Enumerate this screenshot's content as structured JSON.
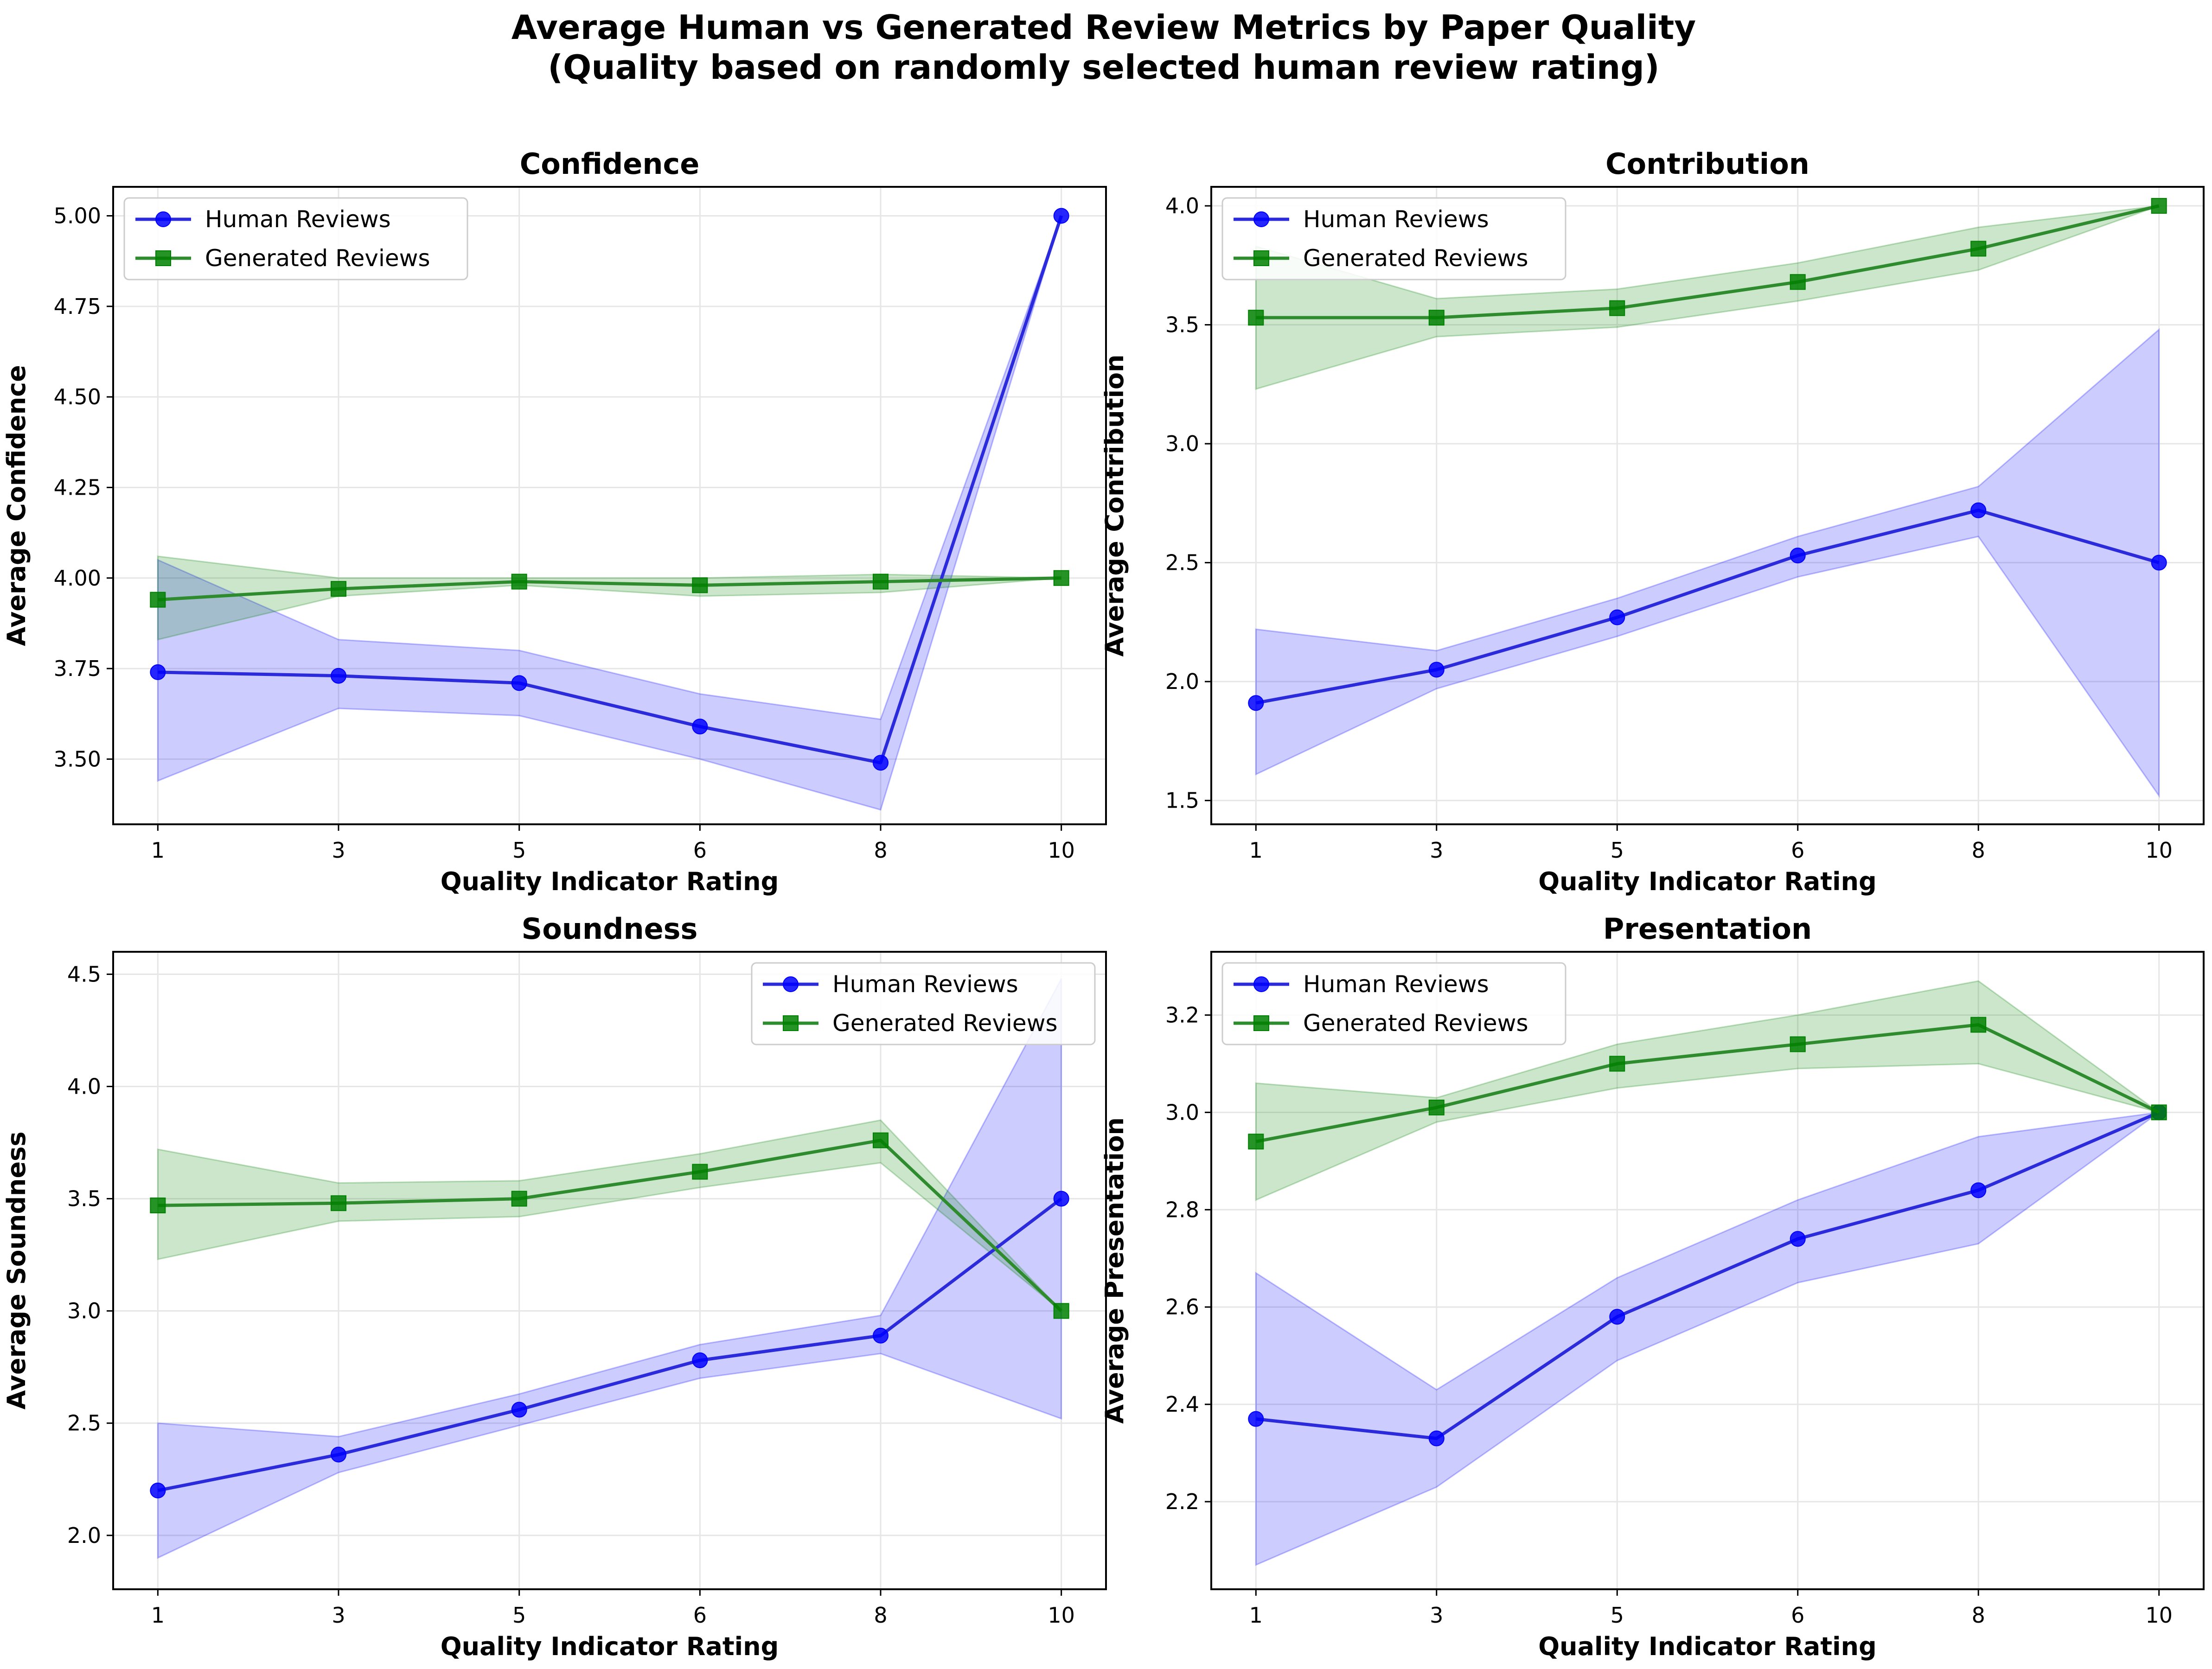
{
  "figure": {
    "title_line1": "Average Human vs Generated Review Metrics by Paper Quality",
    "title_line2": "(Quality based on randomly selected human review rating)"
  },
  "colors": {
    "human": "#0000ff",
    "generated": "#008000",
    "human_line": "#2b2bdc",
    "generated_line": "#2e8b2e",
    "grid": "#e6e6e6"
  },
  "legend": {
    "human": "Human Reviews",
    "generated": "Generated Reviews"
  },
  "chart_data": [
    {
      "type": "line",
      "title": "Confidence",
      "xlabel": "Quality Indicator Rating",
      "ylabel": "Average Confidence",
      "categories": [
        "1",
        "3",
        "5",
        "6",
        "8",
        "10"
      ],
      "ylim": [
        3.32,
        5.08
      ],
      "yticks": [
        3.5,
        3.75,
        4.0,
        4.25,
        4.5,
        4.75,
        5.0
      ],
      "ytick_labels": [
        "3.50",
        "3.75",
        "4.00",
        "4.25",
        "4.50",
        "4.75",
        "5.00"
      ],
      "legend_position": "upper-left",
      "series": [
        {
          "name": "Human Reviews",
          "values": [
            3.74,
            3.73,
            3.71,
            3.59,
            3.49,
            5.0
          ],
          "lower": [
            3.44,
            3.64,
            3.62,
            3.5,
            3.36,
            5.0
          ],
          "upper": [
            4.05,
            3.83,
            3.8,
            3.68,
            3.61,
            5.0
          ]
        },
        {
          "name": "Generated Reviews",
          "values": [
            3.94,
            3.97,
            3.99,
            3.98,
            3.99,
            4.0
          ],
          "lower": [
            3.83,
            3.95,
            3.98,
            3.95,
            3.96,
            4.0
          ],
          "upper": [
            4.06,
            4.0,
            4.0,
            4.0,
            4.01,
            4.0
          ]
        }
      ]
    },
    {
      "type": "line",
      "title": "Contribution",
      "xlabel": "Quality Indicator Rating",
      "ylabel": "Average Contribution",
      "categories": [
        "1",
        "3",
        "5",
        "6",
        "8",
        "10"
      ],
      "ylim": [
        1.4,
        4.08
      ],
      "yticks": [
        1.5,
        2.0,
        2.5,
        3.0,
        3.5,
        4.0
      ],
      "ytick_labels": [
        "1.5",
        "2.0",
        "2.5",
        "3.0",
        "3.5",
        "4.0"
      ],
      "legend_position": "upper-left",
      "series": [
        {
          "name": "Human Reviews",
          "values": [
            1.91,
            2.05,
            2.27,
            2.53,
            2.72,
            2.5
          ],
          "lower": [
            1.61,
            1.97,
            2.19,
            2.44,
            2.61,
            1.52
          ],
          "upper": [
            2.22,
            2.13,
            2.35,
            2.61,
            2.82,
            3.48
          ]
        },
        {
          "name": "Generated Reviews",
          "values": [
            3.53,
            3.53,
            3.57,
            3.68,
            3.82,
            4.0
          ],
          "lower": [
            3.23,
            3.45,
            3.49,
            3.6,
            3.73,
            4.0
          ],
          "upper": [
            3.83,
            3.61,
            3.65,
            3.76,
            3.91,
            4.0
          ]
        }
      ]
    },
    {
      "type": "line",
      "title": "Soundness",
      "xlabel": "Quality Indicator Rating",
      "ylabel": "Average Soundness",
      "categories": [
        "1",
        "3",
        "5",
        "6",
        "8",
        "10"
      ],
      "ylim": [
        1.76,
        4.6
      ],
      "yticks": [
        2.0,
        2.5,
        3.0,
        3.5,
        4.0,
        4.5
      ],
      "ytick_labels": [
        "2.0",
        "2.5",
        "3.0",
        "3.5",
        "4.0",
        "4.5"
      ],
      "legend_position": "upper-right",
      "series": [
        {
          "name": "Human Reviews",
          "values": [
            2.2,
            2.36,
            2.56,
            2.78,
            2.89,
            3.5
          ],
          "lower": [
            1.9,
            2.28,
            2.49,
            2.7,
            2.81,
            2.52
          ],
          "upper": [
            2.5,
            2.44,
            2.63,
            2.85,
            2.98,
            4.48
          ]
        },
        {
          "name": "Generated Reviews",
          "values": [
            3.47,
            3.48,
            3.5,
            3.62,
            3.76,
            3.0
          ],
          "lower": [
            3.23,
            3.4,
            3.42,
            3.55,
            3.66,
            3.0
          ],
          "upper": [
            3.72,
            3.57,
            3.58,
            3.7,
            3.85,
            3.0
          ]
        }
      ]
    },
    {
      "type": "line",
      "title": "Presentation",
      "xlabel": "Quality Indicator Rating",
      "ylabel": "Average Presentation",
      "categories": [
        "1",
        "3",
        "5",
        "6",
        "8",
        "10"
      ],
      "ylim": [
        2.02,
        3.33
      ],
      "yticks": [
        2.2,
        2.4,
        2.6,
        2.8,
        3.0,
        3.2
      ],
      "ytick_labels": [
        "2.2",
        "2.4",
        "2.6",
        "2.8",
        "3.0",
        "3.2"
      ],
      "legend_position": "upper-left",
      "series": [
        {
          "name": "Human Reviews",
          "values": [
            2.37,
            2.33,
            2.58,
            2.74,
            2.84,
            3.0
          ],
          "lower": [
            2.07,
            2.23,
            2.49,
            2.65,
            2.73,
            3.0
          ],
          "upper": [
            2.67,
            2.43,
            2.66,
            2.82,
            2.95,
            3.0
          ]
        },
        {
          "name": "Generated Reviews",
          "values": [
            2.94,
            3.01,
            3.1,
            3.14,
            3.18,
            3.0
          ],
          "lower": [
            2.82,
            2.98,
            3.05,
            3.09,
            3.1,
            3.0
          ],
          "upper": [
            3.06,
            3.03,
            3.14,
            3.2,
            3.27,
            3.0
          ]
        }
      ]
    }
  ]
}
